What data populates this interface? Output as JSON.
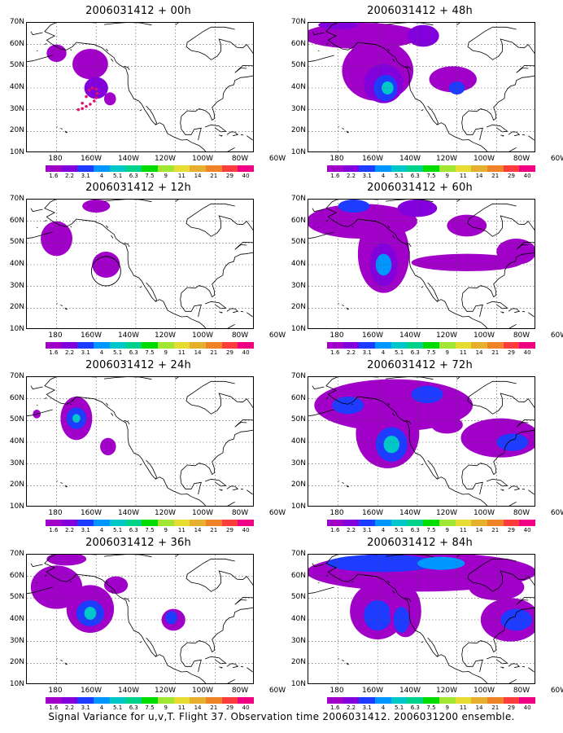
{
  "panels": [
    {
      "title": "2006031412 + 00h"
    },
    {
      "title": "2006031412 + 48h"
    },
    {
      "title": "2006031412 + 12h"
    },
    {
      "title": "2006031412 + 60h"
    },
    {
      "title": "2006031412 + 24h"
    },
    {
      "title": "2006031412 + 72h"
    },
    {
      "title": "2006031412 + 36h"
    },
    {
      "title": "2006031412 + 84h"
    }
  ],
  "lat_labels": [
    "70N",
    "60N",
    "50N",
    "40N",
    "30N",
    "20N",
    "10N"
  ],
  "lon_labels": [
    "180",
    "160W",
    "140W",
    "120W",
    "100W",
    "80W",
    "60W"
  ],
  "colorbar": {
    "labels": [
      "1.6",
      "2.2",
      "3.1",
      "4",
      "5.1",
      "6.3",
      "7.5",
      "9",
      "11",
      "14",
      "21",
      "29",
      "40"
    ],
    "colors": [
      "#a000c8",
      "#8200dc",
      "#1e3cff",
      "#0096ff",
      "#00c8c8",
      "#00d28c",
      "#00dc00",
      "#a0e632",
      "#e6dc32",
      "#e6af2d",
      "#f08228",
      "#fa3c3c",
      "#f00082"
    ]
  },
  "caption": "Signal Variance for u,v,T. Flight 37. Observation time 2006031412. 2006031200 ensemble."
}
